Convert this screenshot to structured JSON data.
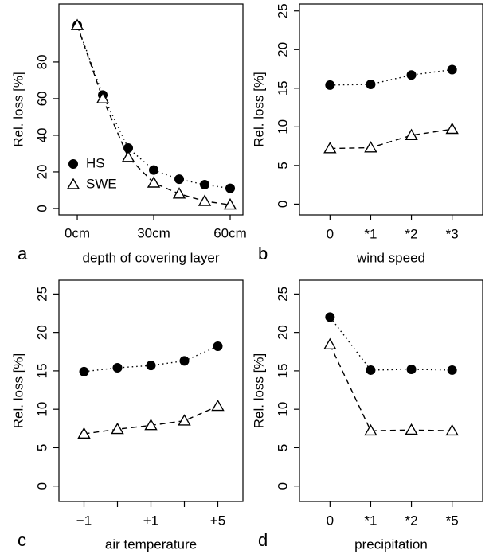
{
  "chart_data": [
    {
      "type": "line",
      "panel_label": "a",
      "xlabel": "depth of covering layer",
      "ylabel": "Rel. loss [%]",
      "x": [
        0,
        10,
        20,
        30,
        40,
        50,
        60
      ],
      "xlim": [
        -7.2,
        65
      ],
      "xticks": [
        {
          "value": 0,
          "label": "0cm"
        },
        {
          "value": 30,
          "label": "30cm"
        },
        {
          "value": 60,
          "label": "60cm"
        }
      ],
      "ylim": [
        -3.5,
        111.7
      ],
      "yticks": [
        0,
        20,
        40,
        60,
        80
      ],
      "legend": "bottom-left",
      "series": [
        {
          "name": "HS",
          "color": "#000000",
          "marker": "circle",
          "dash": "dotted",
          "values": [
            100,
            62,
            33,
            21,
            16,
            13,
            11
          ]
        },
        {
          "name": "SWE",
          "color": "#000000",
          "marker": "triangle",
          "dash": "dashed",
          "values": [
            100,
            60,
            28,
            14,
            8,
            4,
            2
          ]
        }
      ]
    },
    {
      "type": "line",
      "panel_label": "b",
      "xlabel": "wind speed",
      "ylabel": "Rel. loss [%]",
      "categories": [
        "0",
        "*1",
        "*2",
        "*3"
      ],
      "ylim": [
        -1.4,
        25.9
      ],
      "yticks": [
        0,
        5,
        10,
        15,
        20,
        25
      ],
      "series": [
        {
          "color": "#000000",
          "marker": "circle",
          "dash": "dotted",
          "values": [
            15.4,
            15.5,
            16.7,
            17.4
          ]
        },
        {
          "color": "#000000",
          "marker": "triangle",
          "dash": "dashed",
          "values": [
            7.2,
            7.3,
            8.9,
            9.7
          ]
        }
      ]
    },
    {
      "type": "line",
      "panel_label": "c",
      "xlabel": "air temperature",
      "ylabel": "Rel. loss [%]",
      "categories": [
        "−1",
        null,
        "+1",
        null,
        "+5"
      ],
      "ylim": [
        -2.0,
        26.8
      ],
      "yticks": [
        0,
        5,
        10,
        15,
        20,
        25
      ],
      "series": [
        {
          "color": "#000000",
          "marker": "circle",
          "dash": "dotted",
          "values": [
            14.9,
            15.4,
            15.7,
            16.3,
            18.2
          ]
        },
        {
          "color": "#000000",
          "marker": "triangle",
          "dash": "dashed",
          "values": [
            6.8,
            7.4,
            7.9,
            8.5,
            10.4
          ]
        }
      ]
    },
    {
      "type": "line",
      "panel_label": "d",
      "xlabel": "precipitation",
      "ylabel": "Rel. loss [%]",
      "categories": [
        "0",
        "*1",
        "*2",
        "*5"
      ],
      "ylim": [
        -2.0,
        26.8
      ],
      "yticks": [
        0,
        5,
        10,
        15,
        20,
        25
      ],
      "series": [
        {
          "color": "#000000",
          "marker": "circle",
          "dash": "dotted",
          "values": [
            22.0,
            15.1,
            15.2,
            15.1
          ]
        },
        {
          "color": "#000000",
          "marker": "triangle",
          "dash": "dashed",
          "values": [
            18.4,
            7.2,
            7.3,
            7.2
          ]
        }
      ]
    }
  ]
}
